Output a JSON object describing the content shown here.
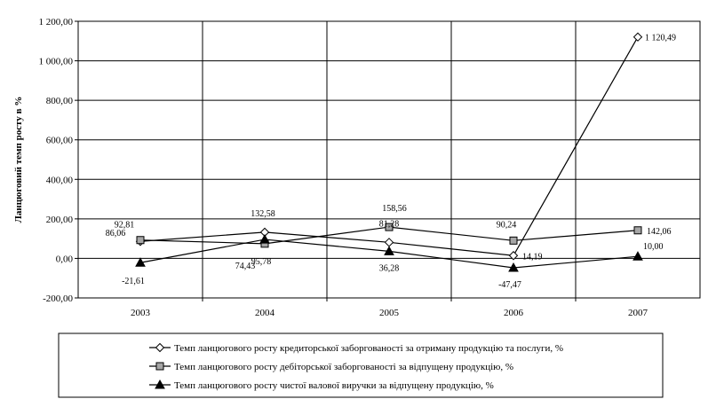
{
  "chart_data": {
    "type": "line",
    "title": "",
    "xlabel": "",
    "ylabel": "Ланцюговий темп росту в %",
    "categories": [
      "2003",
      "2004",
      "2005",
      "2006",
      "2007"
    ],
    "ylim": [
      -200,
      1200
    ],
    "yticks": [
      -200,
      0,
      200,
      400,
      600,
      800,
      1000,
      1200
    ],
    "ytick_labels": [
      "-200,00",
      "0,00",
      "200,00",
      "400,00",
      "600,00",
      "800,00",
      "1 000,00",
      "1 200,00"
    ],
    "grid": true,
    "legend_position": "bottom",
    "series": [
      {
        "name": "Темп ланцюгового росту кредиторської заборгованості за отриману продукцію та послуги, %",
        "marker": "diamond-open",
        "values": [
          86.06,
          132.58,
          81.28,
          14.19,
          1120.49
        ],
        "labels": [
          "86,06",
          "132,58",
          "81,28",
          "14,19",
          "1 120,49"
        ]
      },
      {
        "name": "Темп ланцюгового росту дебіторської заборгованості за відпущену продукцію, %",
        "marker": "square-gray",
        "values": [
          92.81,
          74.43,
          158.56,
          90.24,
          142.06
        ],
        "labels": [
          "92,81",
          "74,43",
          "158,56",
          "90,24",
          "142,06"
        ]
      },
      {
        "name": "Темп ланцюгового росту чистої валової виручки за відпущену продукцію, %",
        "marker": "triangle-filled",
        "values": [
          -21.61,
          95.78,
          36.28,
          -47.47,
          10.0
        ],
        "labels": [
          "-21,61",
          "95,78",
          "36,28",
          "-47,47",
          "10,00"
        ]
      }
    ]
  }
}
